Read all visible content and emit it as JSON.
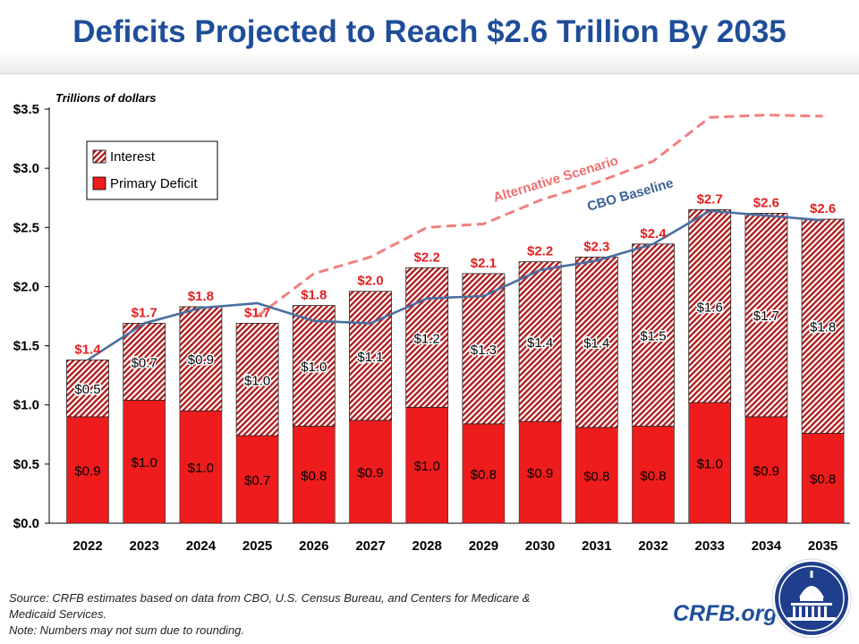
{
  "header": {
    "title": "Deficits Projected to Reach $2.6 Trillion By 2035"
  },
  "footer": {
    "source_line1": "Source: CRFB estimates based on data from CBO, U.S. Census Bureau, and Centers for Medicare &",
    "source_line2": "Medicaid Services.",
    "note": "Note: Numbers may not sum due to rounding.",
    "brand": "CRFB.org"
  },
  "colors": {
    "primary_deficit": "#ee1c1c",
    "interest_hatch": "#b01818",
    "cbo_baseline_line": "#4a6fa0",
    "alternative_line": "#f28080",
    "total_label": "#e32020",
    "title": "#1f4e99"
  },
  "chart_data": {
    "type": "bar",
    "stacked": true,
    "unit_label": "Trillions of dollars",
    "ylim": [
      0,
      3.5
    ],
    "yticks": [
      0,
      0.5,
      1.0,
      1.5,
      2.0,
      2.5,
      3.0,
      3.5
    ],
    "ytick_labels": [
      "$0.0",
      "$0.5",
      "$1.0",
      "$1.5",
      "$2.0",
      "$2.5",
      "$3.0",
      "$3.5"
    ],
    "grid": false,
    "legend_position": "top-left",
    "categories": [
      "2022",
      "2023",
      "2024",
      "2025",
      "2026",
      "2027",
      "2028",
      "2029",
      "2030",
      "2031",
      "2032",
      "2033",
      "2034",
      "2035"
    ],
    "series": [
      {
        "name": "Primary Deficit",
        "values": [
          0.9,
          1.04,
          0.95,
          0.74,
          0.82,
          0.87,
          0.98,
          0.84,
          0.86,
          0.81,
          0.82,
          1.02,
          0.9,
          0.76
        ],
        "labels": [
          "$0.9",
          "$1.0",
          "$1.0",
          "$0.7",
          "$0.8",
          "$0.9",
          "$1.0",
          "$0.8",
          "$0.9",
          "$0.8",
          "$0.8",
          "$1.0",
          "$0.9",
          "$0.8"
        ]
      },
      {
        "name": "Interest",
        "values": [
          0.48,
          0.65,
          0.88,
          0.95,
          1.02,
          1.09,
          1.18,
          1.27,
          1.35,
          1.44,
          1.54,
          1.63,
          1.72,
          1.81
        ],
        "labels": [
          "$0.5",
          "$0.7",
          "$0.9",
          "$1.0",
          "$1.0",
          "$1.1",
          "$1.2",
          "$1.3",
          "$1.4",
          "$1.4",
          "$1.5",
          "$1.6",
          "$1.7",
          "$1.8"
        ]
      }
    ],
    "total_labels": [
      "$1.4",
      "$1.7",
      "$1.8",
      "$1.7",
      "$1.8",
      "$2.0",
      "$2.2",
      "$2.1",
      "$2.2",
      "$2.3",
      "$2.4",
      "$2.7",
      "$2.6",
      "$2.6"
    ],
    "lines": [
      {
        "name": "CBO Baseline",
        "style": "solid",
        "values": [
          1.38,
          1.69,
          1.82,
          1.86,
          1.71,
          1.69,
          1.9,
          1.92,
          2.14,
          2.22,
          2.36,
          2.64,
          2.6,
          2.56
        ]
      },
      {
        "name": "Alternative Scenario",
        "style": "dashed",
        "values": [
          null,
          null,
          null,
          1.75,
          2.11,
          2.25,
          2.5,
          2.53,
          2.73,
          2.88,
          3.06,
          3.43,
          3.45,
          3.44
        ]
      }
    ]
  }
}
